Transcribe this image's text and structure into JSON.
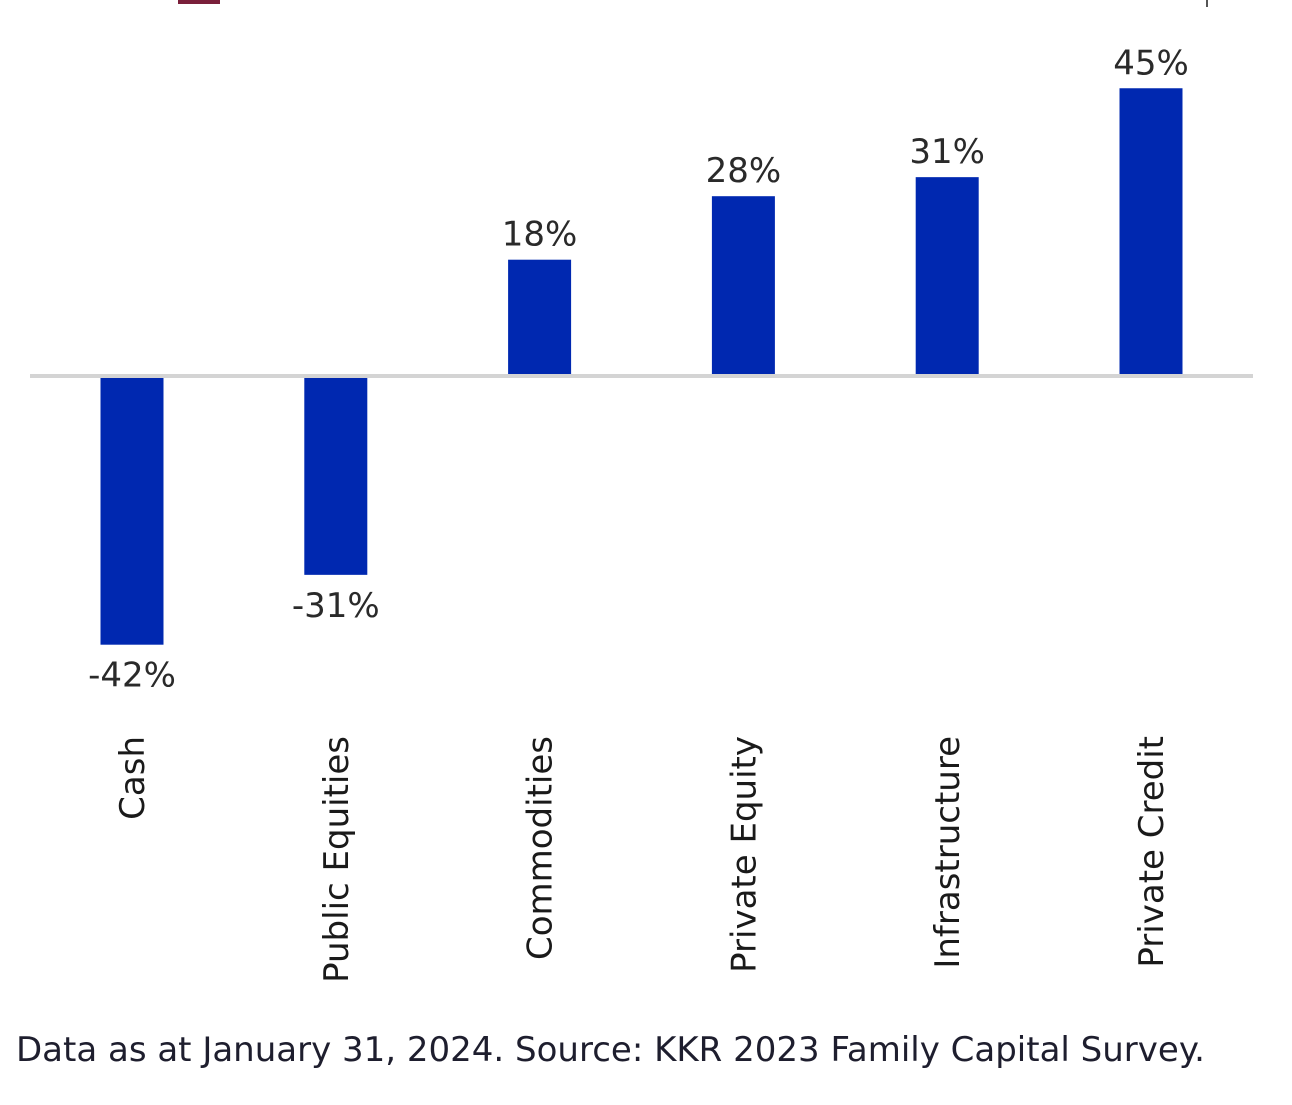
{
  "chart_data": {
    "type": "bar",
    "categories": [
      "Cash",
      "Public Equities",
      "Commodities",
      "Private Equity",
      "Infrastructure",
      "Private Credit"
    ],
    "values": [
      -42,
      -31,
      18,
      28,
      31,
      45
    ],
    "value_labels": [
      "-42%",
      "-31%",
      "18%",
      "28%",
      "31%",
      "45%"
    ],
    "title": "",
    "xlabel": "",
    "ylabel": "",
    "ylim": [
      -45,
      48
    ],
    "grid": false,
    "legend": "none",
    "bar_color": "#0028b0",
    "baseline_color": "#d4d4d4"
  },
  "footnote": "Data as at January 31, 2024. Source: KKR 2023 Family Capital Survey."
}
